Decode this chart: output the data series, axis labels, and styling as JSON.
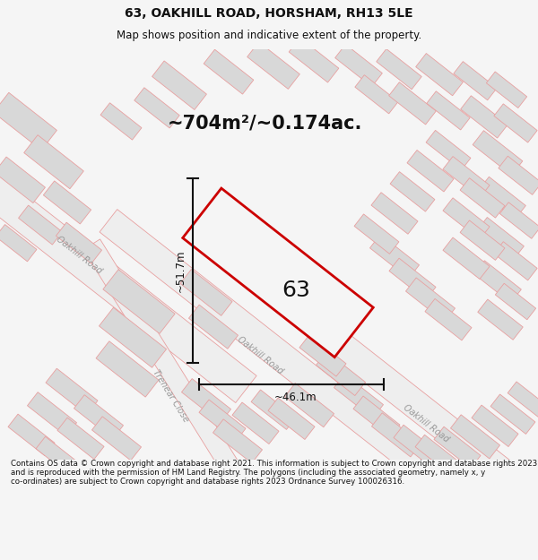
{
  "title_line1": "63, OAKHILL ROAD, HORSHAM, RH13 5LE",
  "title_line2": "Map shows position and indicative extent of the property.",
  "area_text": "~704m²/~0.174ac.",
  "label_63": "63",
  "dim_height": "~51.7m",
  "dim_width": "~46.1m",
  "road_label_oakhill_ul": "Oakhill Road",
  "road_label_oakhill_mid": "Oakhill Road",
  "road_label_oakhill_lr": "Oakhill Road",
  "road_label_trenear": "Trenear Close",
  "footer_text": "Contains OS data © Crown copyright and database right 2021. This information is subject to Crown copyright and database rights 2023 and is reproduced with the permission of HM Land Registry. The polygons (including the associated geometry, namely x, y co-ordinates) are subject to Crown copyright and database rights 2023 Ordnance Survey 100026316.",
  "bg_color": "#f5f5f5",
  "map_bg": "#ffffff",
  "road_outline_color": "#e8a0a0",
  "road_fill_color": "#eeeeee",
  "bldg_fill_color": "#d8d8d8",
  "bldg_outline_color": "#e8a0a0",
  "property_color": "#cc0000",
  "property_fill": "#f5f5f5",
  "dim_color": "#111111",
  "text_color": "#111111",
  "road_text_color": "#999999",
  "title_fontsize": 10,
  "subtitle_fontsize": 8.5,
  "area_fontsize": 15,
  "label_fontsize": 18,
  "dim_fontsize": 8.5,
  "road_fontsize": 7,
  "footer_fontsize": 6.2
}
